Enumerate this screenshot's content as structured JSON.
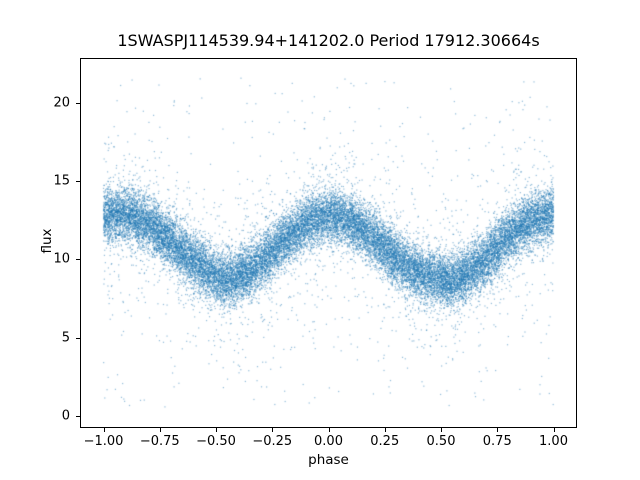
{
  "chart_data": {
    "type": "scatter",
    "title": "1SWASPJ114539.94+141202.0 Period 17912.30664s",
    "xlabel": "phase",
    "ylabel": "flux",
    "xlim": [
      -1.1,
      1.1
    ],
    "ylim": [
      -0.7,
      22.8
    ],
    "xticks": {
      "values": [
        -1.0,
        -0.75,
        -0.5,
        -0.25,
        0.0,
        0.25,
        0.5,
        0.75,
        1.0
      ],
      "labels": [
        "−1.00",
        "−0.75",
        "−0.50",
        "−0.25",
        "0.00",
        "0.25",
        "0.50",
        "0.75",
        "1.00"
      ]
    },
    "yticks": {
      "values": [
        0,
        5,
        10,
        15,
        20
      ],
      "labels": [
        "0",
        "5",
        "10",
        "15",
        "20"
      ]
    },
    "marker_color": "#1f77b4",
    "marker_alpha": 0.5,
    "marker_size_px": 1.2,
    "num_points": 26000,
    "seed": 1337,
    "mean_curve": {
      "phase": [
        -1.0,
        -0.9,
        -0.8,
        -0.7,
        -0.6,
        -0.5,
        -0.45,
        -0.4,
        -0.3,
        -0.2,
        -0.1,
        -0.05,
        0.0,
        0.05,
        0.1,
        0.2,
        0.3,
        0.4,
        0.5,
        0.55,
        0.6,
        0.7,
        0.8,
        0.9,
        1.0
      ],
      "flux": [
        12.8,
        12.9,
        12.3,
        11.2,
        9.9,
        8.9,
        8.7,
        8.9,
        9.9,
        11.2,
        12.3,
        12.6,
        12.8,
        12.7,
        12.4,
        11.4,
        10.1,
        9.1,
        8.7,
        8.6,
        8.9,
        10.0,
        11.5,
        12.5,
        12.9
      ],
      "band_sigma": 0.85
    },
    "outliers": {
      "wide_fraction": 0.08,
      "wide_sigma": 2.5,
      "uniform_fraction": 0.015,
      "uniform_range": [
        0.5,
        21.6
      ]
    },
    "grid": false,
    "legend": null
  }
}
